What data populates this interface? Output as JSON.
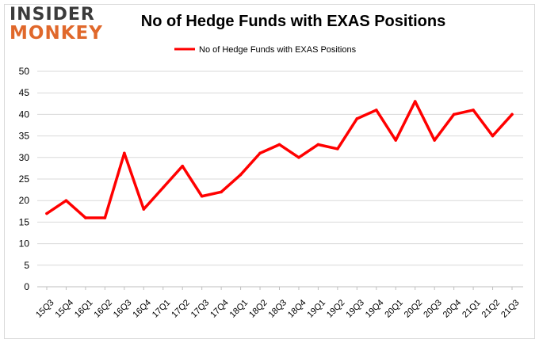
{
  "logo": {
    "line1": "INSIDER",
    "line2": "MONKEY"
  },
  "colors": {
    "series": "#ff0000",
    "grid": "#d9d9d9",
    "logo_dark": "#3b3b3b",
    "logo_orange": "#e0682b"
  },
  "chart_data": {
    "type": "line",
    "title": "No of Hedge Funds with EXAS Positions",
    "xlabel": "",
    "ylabel": "",
    "ylim": [
      0,
      50
    ],
    "yticks": [
      0,
      5,
      10,
      15,
      20,
      25,
      30,
      35,
      40,
      45,
      50
    ],
    "grid": true,
    "legend_position": "top-center",
    "categories": [
      "15Q3",
      "15Q4",
      "16Q1",
      "16Q2",
      "16Q3",
      "16Q4",
      "17Q1",
      "17Q2",
      "17Q3",
      "17Q4",
      "18Q1",
      "18Q2",
      "18Q3",
      "18Q4",
      "19Q1",
      "19Q2",
      "19Q3",
      "19Q4",
      "20Q1",
      "20Q2",
      "20Q3",
      "20Q4",
      "21Q1",
      "21Q2",
      "21Q3"
    ],
    "series": [
      {
        "name": "No of Hedge Funds with EXAS Positions",
        "values": [
          17,
          20,
          16,
          16,
          31,
          18,
          23,
          28,
          21,
          22,
          26,
          31,
          33,
          30,
          33,
          32,
          39,
          41,
          34,
          43,
          34,
          40,
          41,
          35,
          40
        ]
      }
    ]
  }
}
